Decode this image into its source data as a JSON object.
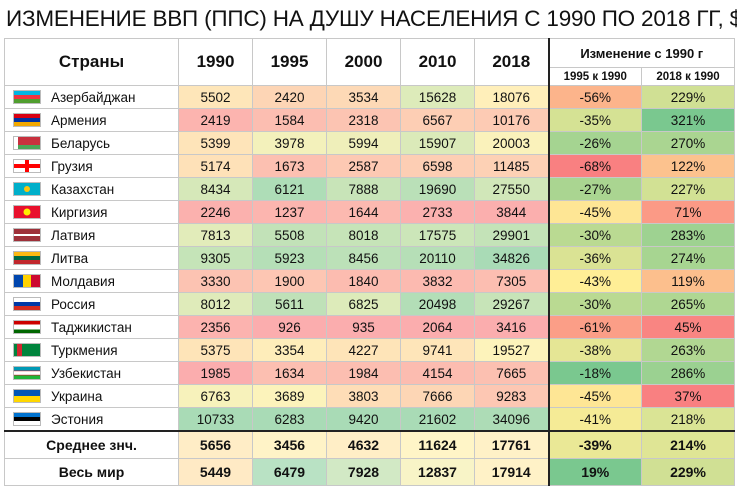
{
  "title": "ИЗМЕНЕНИЕ ВВП (ППС) НА ДУШУ НАСЕЛЕНИЯ С 1990 ПО 2018 ГГ, $",
  "header": {
    "country_label": "Страны",
    "years": [
      "1990",
      "1995",
      "2000",
      "2010",
      "2018"
    ],
    "change_label": "Изменение с 1990 г",
    "change_sub": [
      "1995 к 1990",
      "2018 к 1990"
    ]
  },
  "colors": {
    "low": "#f8696b",
    "mid": "#ffeb84",
    "high": "#63be7b"
  },
  "chart_data": {
    "type": "table",
    "title": "ИЗМЕНЕНИЕ ВВП (ППС) НА ДУШУ НАСЕЛЕНИЯ С 1990 ПО 2018 ГГ, $",
    "columns": [
      "Страны",
      "1990",
      "1995",
      "2000",
      "2010",
      "2018",
      "1995 к 1990",
      "2018 к 1990"
    ],
    "rows": [
      {
        "name": "Азербайджан",
        "flag": "azerbaijan-flag",
        "values": [
          "5502",
          "2420",
          "3534",
          "15628",
          "18076"
        ],
        "changes": [
          "-56%",
          "229%"
        ]
      },
      {
        "name": "Армения",
        "flag": "armenia-flag",
        "values": [
          "2419",
          "1584",
          "2318",
          "6567",
          "10176"
        ],
        "changes": [
          "-35%",
          "321%"
        ]
      },
      {
        "name": "Беларусь",
        "flag": "belarus-flag",
        "values": [
          "5399",
          "3978",
          "5994",
          "15907",
          "20003"
        ],
        "changes": [
          "-26%",
          "270%"
        ]
      },
      {
        "name": "Грузия",
        "flag": "georgia-flag",
        "values": [
          "5174",
          "1673",
          "2587",
          "6598",
          "11485"
        ],
        "changes": [
          "-68%",
          "122%"
        ]
      },
      {
        "name": "Казахстан",
        "flag": "kazakhstan-flag",
        "values": [
          "8434",
          "6121",
          "7888",
          "19690",
          "27550"
        ],
        "changes": [
          "-27%",
          "227%"
        ]
      },
      {
        "name": "Киргизия",
        "flag": "kyrgyzstan-flag",
        "values": [
          "2246",
          "1237",
          "1644",
          "2733",
          "3844"
        ],
        "changes": [
          "-45%",
          "71%"
        ]
      },
      {
        "name": "Латвия",
        "flag": "latvia-flag",
        "values": [
          "7813",
          "5508",
          "8018",
          "17575",
          "29901"
        ],
        "changes": [
          "-30%",
          "283%"
        ]
      },
      {
        "name": "Литва",
        "flag": "lithuania-flag",
        "values": [
          "9305",
          "5923",
          "8456",
          "20110",
          "34826"
        ],
        "changes": [
          "-36%",
          "274%"
        ]
      },
      {
        "name": "Молдавия",
        "flag": "moldova-flag",
        "values": [
          "3330",
          "1900",
          "1840",
          "3832",
          "7305"
        ],
        "changes": [
          "-43%",
          "119%"
        ]
      },
      {
        "name": "Россия",
        "flag": "russia-flag",
        "values": [
          "8012",
          "5611",
          "6825",
          "20498",
          "29267"
        ],
        "changes": [
          "-30%",
          "265%"
        ]
      },
      {
        "name": "Таджикистан",
        "flag": "tajikistan-flag",
        "values": [
          "2356",
          "926",
          "935",
          "2064",
          "3416"
        ],
        "changes": [
          "-61%",
          "45%"
        ]
      },
      {
        "name": "Туркмения",
        "flag": "turkmenistan-flag",
        "values": [
          "5375",
          "3354",
          "4227",
          "9741",
          "19527"
        ],
        "changes": [
          "-38%",
          "263%"
        ]
      },
      {
        "name": "Узбекистан",
        "flag": "uzbekistan-flag",
        "values": [
          "1985",
          "1634",
          "1984",
          "4154",
          "7665"
        ],
        "changes": [
          "-18%",
          "286%"
        ]
      },
      {
        "name": "Украина",
        "flag": "ukraine-flag",
        "values": [
          "6763",
          "3689",
          "3803",
          "7666",
          "9283"
        ],
        "changes": [
          "-45%",
          "37%"
        ]
      },
      {
        "name": "Эстония",
        "flag": "estonia-flag",
        "values": [
          "10733",
          "6283",
          "9420",
          "21602",
          "34096"
        ],
        "changes": [
          "-41%",
          "218%"
        ]
      }
    ],
    "summary": [
      {
        "name": "Среднее знч.",
        "values": [
          "5656",
          "3456",
          "4632",
          "11624",
          "17761"
        ],
        "changes": [
          "-39%",
          "214%"
        ]
      },
      {
        "name": "Весь мир",
        "values": [
          "5449",
          "6479",
          "7928",
          "12837",
          "17914"
        ],
        "changes": [
          "19%",
          "229%"
        ]
      }
    ]
  }
}
